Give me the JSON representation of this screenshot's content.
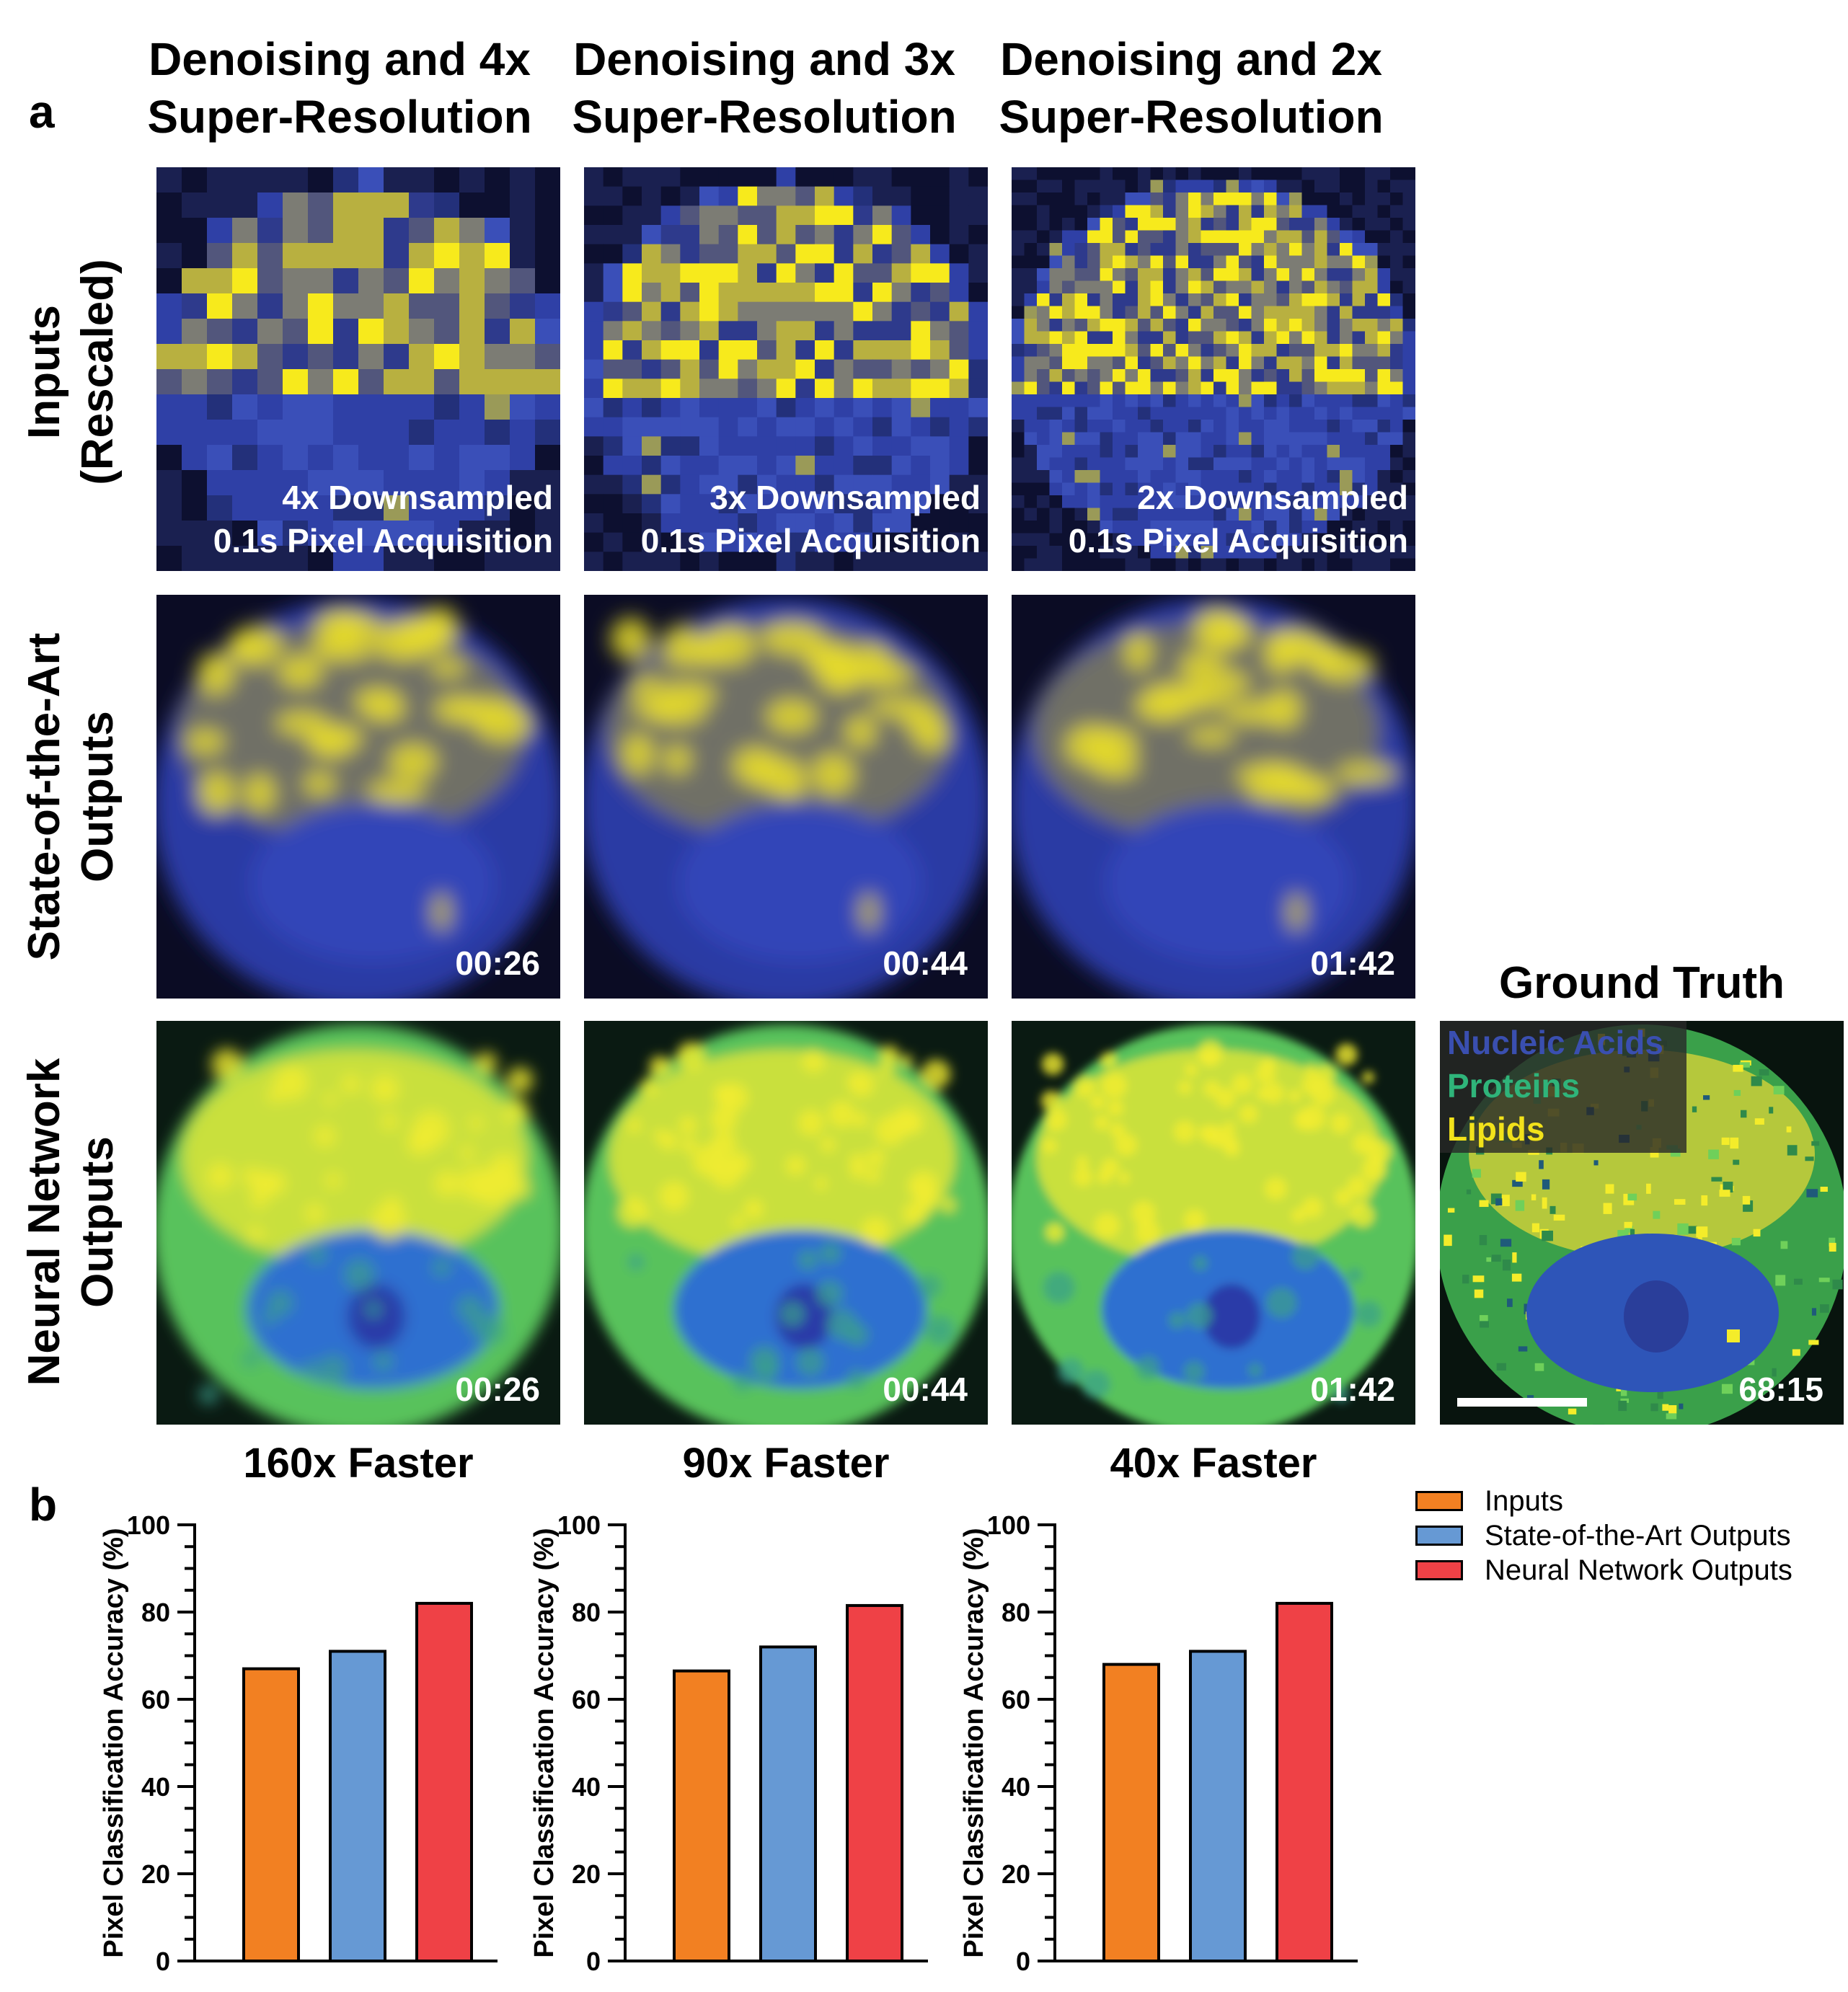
{
  "panel_labels": {
    "a": "a",
    "b": "b"
  },
  "columns": [
    {
      "title_line1": "Denoising and 4x",
      "title_line2": "Super-Resolution",
      "input_line1": "4x Downsampled",
      "input_line2": "0.1s Pixel Acquisition",
      "sota_time": "00:26",
      "nn_time": "00:26",
      "speedup": "160x Faster"
    },
    {
      "title_line1": "Denoising and 3x",
      "title_line2": "Super-Resolution",
      "input_line1": "3x Downsampled",
      "input_line2": "0.1s Pixel Acquisition",
      "sota_time": "00:44",
      "nn_time": "00:44",
      "speedup": "90x Faster"
    },
    {
      "title_line1": "Denoising and 2x",
      "title_line2": "Super-Resolution",
      "input_line1": "2x Downsampled",
      "input_line2": "0.1s Pixel Acquisition",
      "sota_time": "01:42",
      "nn_time": "01:42",
      "speedup": "40x Faster"
    }
  ],
  "row_labels": {
    "inputs_line1": "Inputs",
    "inputs_line2": "(Rescaled)",
    "sota_line1": "State-of-the-Art",
    "sota_line2": "Outputs",
    "nn_line1": "Neural Network",
    "nn_line2": "Outputs"
  },
  "ground_truth": {
    "title": "Ground Truth",
    "time": "68:15",
    "legend": [
      {
        "label": "Nucleic Acids",
        "color": "#3a4fb0"
      },
      {
        "label": "Proteins",
        "color": "#2fb47a"
      },
      {
        "label": "Lipids",
        "color": "#f2e21a"
      }
    ]
  },
  "colors": {
    "inputs": "#f28022",
    "sota": "#6699d4",
    "nn": "#ef4146"
  },
  "chart_data": [
    {
      "type": "bar",
      "categories": [
        "Inputs",
        "State-of-the-Art Outputs",
        "Neural Network Outputs"
      ],
      "values": [
        67,
        71,
        82
      ],
      "ylabel": "Pixel Classification Accuracy (%)",
      "ylim": [
        0,
        100
      ],
      "yticks": [
        0,
        20,
        40,
        60,
        80,
        100
      ]
    },
    {
      "type": "bar",
      "categories": [
        "Inputs",
        "State-of-the-Art Outputs",
        "Neural Network Outputs"
      ],
      "values": [
        66.5,
        72,
        81.5
      ],
      "ylabel": "Pixel Classification Accuracy (%)",
      "ylim": [
        0,
        100
      ],
      "yticks": [
        0,
        20,
        40,
        60,
        80,
        100
      ]
    },
    {
      "type": "bar",
      "categories": [
        "Inputs",
        "State-of-the-Art Outputs",
        "Neural Network Outputs"
      ],
      "values": [
        68,
        71,
        82
      ],
      "ylabel": "Pixel Classification Accuracy (%)",
      "ylim": [
        0,
        100
      ],
      "yticks": [
        0,
        20,
        40,
        60,
        80,
        100
      ]
    }
  ],
  "legend": [
    "Inputs",
    "State-of-the-Art Outputs",
    "Neural Network Outputs"
  ]
}
